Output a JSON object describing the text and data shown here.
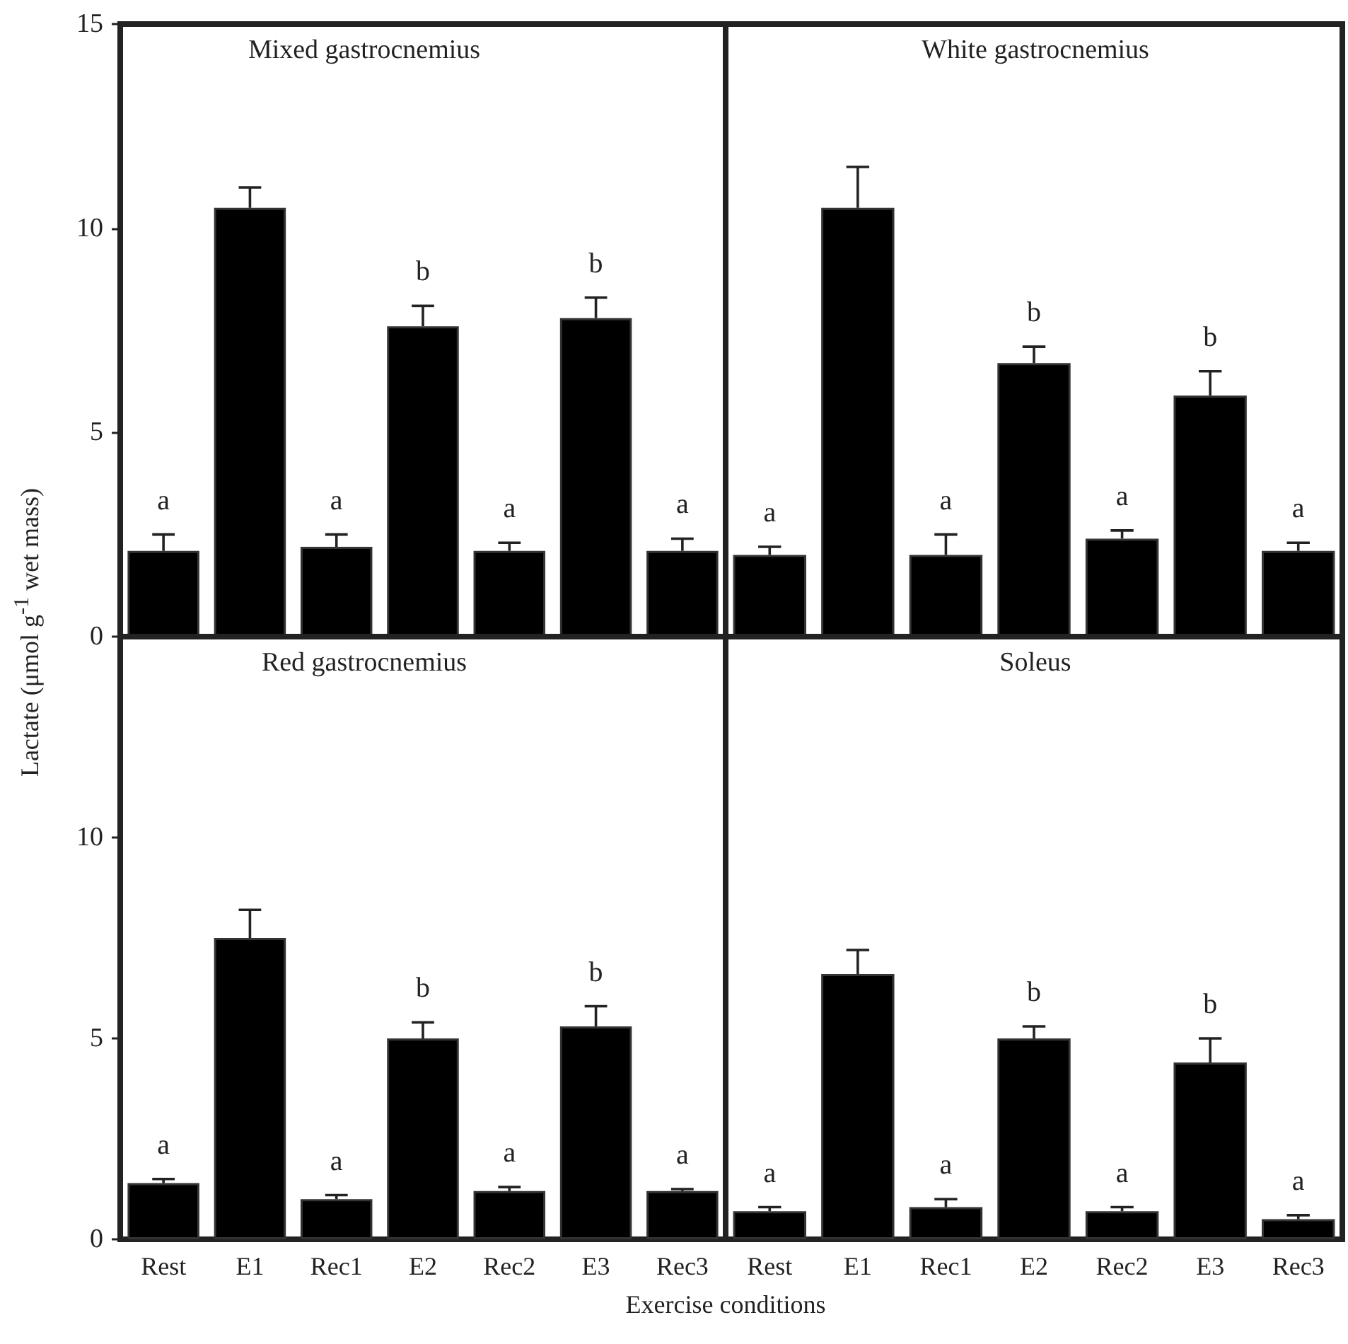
{
  "chart_data": [
    {
      "type": "bar",
      "title": "Mixed gastrocnemius",
      "ylabel": "Lactate (μmol g$^{-1}$ wet mass)",
      "categories": [
        "Rest",
        "E1",
        "Rec1",
        "E2",
        "Rec2",
        "E3",
        "Rec3"
      ],
      "series": [
        {
          "color": "#000000",
          "values": [
            2.1,
            10.5,
            2.2,
            7.6,
            2.1,
            7.8,
            2.1
          ],
          "errors": [
            0.4,
            0.5,
            0.3,
            0.5,
            0.2,
            0.5,
            0.3
          ]
        }
      ],
      "ylim": [
        0,
        15
      ],
      "yticks": [
        0,
        5,
        10,
        15
      ],
      "tick_labels": "y",
      "annotations": [
        {
          "text": "a",
          "x": "Rest",
          "y": 2.5
        },
        {
          "text": "a",
          "x": "Rec1",
          "y": 2.5
        },
        {
          "text": "b",
          "x": "E2",
          "y": 8.1
        },
        {
          "text": "a",
          "x": "Rec2",
          "y": 2.3
        },
        {
          "text": "b",
          "x": "E3",
          "y": 8.3
        },
        {
          "text": "a",
          "x": "Rec3",
          "y": 2.4
        }
      ]
    },
    {
      "type": "bar",
      "title": "White gastrocnemius",
      "categories": [
        "Rest",
        "E1",
        "Rec1",
        "E2",
        "Rec2",
        "E3",
        "Rec3"
      ],
      "series": [
        {
          "color": "#000000",
          "values": [
            2.0,
            10.5,
            2.0,
            6.7,
            2.4,
            5.9,
            2.1
          ],
          "errors": [
            0.2,
            1.0,
            0.5,
            0.4,
            0.2,
            0.6,
            0.2
          ]
        }
      ],
      "ylim": [
        0,
        15
      ],
      "yticks": [
        0,
        5,
        10,
        15
      ],
      "tick_labels": false,
      "annotations": [
        {
          "text": "a",
          "x": "Rest",
          "y": 2.2
        },
        {
          "text": "a",
          "x": "Rec1",
          "y": 2.5
        },
        {
          "text": "b",
          "x": "E2",
          "y": 7.1
        },
        {
          "text": "a",
          "x": "Rec2",
          "y": 2.6
        },
        {
          "text": "b",
          "x": "E3",
          "y": 6.5
        },
        {
          "text": "a",
          "x": "Rec3",
          "y": 2.3
        }
      ]
    },
    {
      "type": "bar",
      "title": "Red gastrocnemius",
      "xlabel": "Exercise conditions",
      "categories": [
        "Rest",
        "E1",
        "Rec1",
        "E2",
        "Rec2",
        "E3",
        "Rec3"
      ],
      "series": [
        {
          "color": "#000000",
          "values": [
            1.4,
            7.5,
            1.0,
            5.0,
            1.2,
            5.3,
            1.2
          ],
          "errors": [
            0.1,
            0.7,
            0.1,
            0.4,
            0.1,
            0.5,
            0.05
          ]
        }
      ],
      "ylim": [
        0,
        15
      ],
      "yticks": [
        0,
        5,
        10
      ],
      "annotations": [
        {
          "text": "a",
          "x": "Rest",
          "y": 1.5
        },
        {
          "text": "a",
          "x": "Rec1",
          "y": 1.1
        },
        {
          "text": "b",
          "x": "E2",
          "y": 5.4
        },
        {
          "text": "a",
          "x": "Rec2",
          "y": 1.3
        },
        {
          "text": "b",
          "x": "E3",
          "y": 5.8
        },
        {
          "text": "a",
          "x": "Rec3",
          "y": 1.25
        }
      ]
    },
    {
      "type": "bar",
      "title": "Soleus",
      "categories": [
        "Rest",
        "E1",
        "Rec1",
        "E2",
        "Rec2",
        "E3",
        "Rec3"
      ],
      "series": [
        {
          "color": "#000000",
          "values": [
            0.7,
            6.6,
            0.8,
            5.0,
            0.7,
            4.4,
            0.5
          ],
          "errors": [
            0.1,
            0.6,
            0.2,
            0.3,
            0.1,
            0.6,
            0.1
          ]
        }
      ],
      "ylim": [
        0,
        15
      ],
      "yticks": [
        0,
        5,
        10
      ],
      "tick_labels": "x",
      "annotations": [
        {
          "text": "a",
          "x": "Rest",
          "y": 0.8
        },
        {
          "text": "a",
          "x": "Rec1",
          "y": 1.0
        },
        {
          "text": "b",
          "x": "E2",
          "y": 5.3
        },
        {
          "text": "a",
          "x": "Rec2",
          "y": 0.8
        },
        {
          "text": "b",
          "x": "E3",
          "y": 5.0
        },
        {
          "text": "a",
          "x": "Rec3",
          "y": 0.6
        }
      ]
    }
  ]
}
